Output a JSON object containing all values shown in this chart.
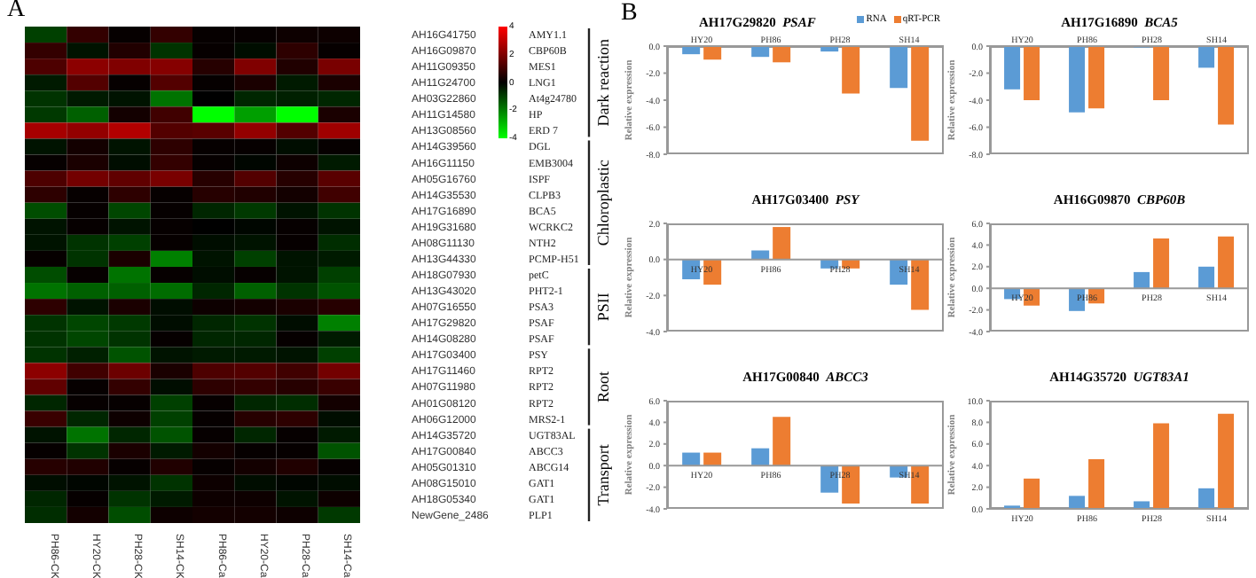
{
  "chart_data": [
    {
      "type": "heatmap",
      "categories": [
        "PH86-CK",
        "HY20-CK",
        "PH28-CK",
        "SH14-CK",
        "PH86-Ca",
        "HY20-Ca",
        "PH28-Ca",
        "SH14-Ca"
      ],
      "y_categories": [
        "AH16G41750",
        "AH16G09870",
        "AH11G09350",
        "AH11G24700",
        "AH03G22860",
        "AH11G14580",
        "AH13G08560",
        "AH14G39560",
        "AH16G11150",
        "AH05G16760",
        "AH14G35530",
        "AH17G16890",
        "AH19G31680",
        "AH08G11130",
        "AH13G44330",
        "AH18G07930",
        "AH13G43020",
        "AH07G16550",
        "AH17G29820",
        "AH14G08280",
        "AH17G03400",
        "AH17G11460",
        "AH07G11980",
        "AH01G08120",
        "AH06G12000",
        "AH14G35720",
        "AH17G00840",
        "AH05G01310",
        "AH08G15010",
        "AH18G05340",
        "NewGene_2486"
      ],
      "y2_categories": [
        "AMY1.1",
        "CBP60B",
        "MES1",
        "LNG1",
        "At4g24780",
        "HP",
        "ERD 7",
        "DGL",
        "EMB3004",
        "ISPF",
        "CLPB3",
        "BCA5",
        "WCRKC2",
        "NTH2",
        "PCMP-H51",
        "petC",
        "PHT2-1",
        "PSA3",
        "PSAF",
        "PSAF",
        "PSY",
        "RPT2",
        "RPT2",
        "RPT2",
        "MRS2-1",
        "UGT83AL",
        "ABCC3",
        "ABCG14",
        "GAT1",
        "GAT1",
        "PLP1"
      ],
      "cells": [
        [
          -1.0,
          0.8,
          0.1,
          0.8,
          0.1,
          0.1,
          0.2,
          0.2
        ],
        [
          0.8,
          -0.3,
          0.5,
          -0.8,
          0.1,
          -0.2,
          0.7,
          0.1
        ],
        [
          1.2,
          2.2,
          2.0,
          2.1,
          0.6,
          2.0,
          0.5,
          1.9
        ],
        [
          -0.4,
          1.3,
          0.1,
          1.3,
          0.1,
          0.4,
          -0.4,
          0.4
        ],
        [
          -0.8,
          -0.4,
          -0.3,
          -1.8,
          0.0,
          -0.6,
          -0.5,
          -0.6
        ],
        [
          -0.9,
          -1.5,
          0.3,
          1.0,
          -4.0,
          -2.5,
          -4.0,
          0.4
        ],
        [
          2.6,
          2.3,
          2.8,
          1.3,
          1.4,
          2.3,
          1.3,
          2.5
        ],
        [
          -0.3,
          0.3,
          -0.3,
          0.7,
          0.1,
          0.1,
          -0.2,
          0.1
        ],
        [
          0.1,
          0.4,
          -0.2,
          0.8,
          0.1,
          -0.1,
          0.2,
          -0.4
        ],
        [
          1.2,
          1.8,
          1.5,
          1.9,
          0.6,
          1.3,
          0.6,
          1.4
        ],
        [
          0.7,
          0.1,
          0.7,
          0.1,
          0.6,
          0.5,
          0.3,
          1.0
        ],
        [
          -1.2,
          0.1,
          -1.1,
          0.1,
          -0.6,
          -0.9,
          -0.3,
          -0.8
        ],
        [
          -0.3,
          0.1,
          -0.3,
          0.1,
          0.0,
          -0.1,
          0.1,
          -0.3
        ],
        [
          -0.3,
          -0.8,
          -1.0,
          0.1,
          -0.2,
          -0.3,
          0.1,
          -0.7
        ],
        [
          0.1,
          -0.8,
          0.4,
          -2.0,
          -0.3,
          -1.0,
          -0.3,
          -0.4
        ],
        [
          -1.2,
          0.1,
          -1.8,
          0.1,
          -0.2,
          0.1,
          -0.3,
          -1.0
        ],
        [
          -1.8,
          -1.5,
          -1.5,
          -1.7,
          -0.6,
          -1.5,
          -0.8,
          -1.3
        ],
        [
          0.7,
          -0.3,
          0.4,
          -0.2,
          0.2,
          0.3,
          0.4,
          0.6
        ],
        [
          -0.8,
          -1.1,
          -0.9,
          -0.2,
          -0.6,
          -0.8,
          -0.2,
          -2.0
        ],
        [
          -0.8,
          -1.1,
          -0.8,
          0.1,
          -0.6,
          -0.6,
          0.1,
          -0.4
        ],
        [
          -0.8,
          -0.5,
          -1.3,
          -0.3,
          -0.4,
          -0.4,
          -0.3,
          -1.0
        ],
        [
          2.2,
          1.0,
          1.7,
          0.4,
          1.2,
          1.3,
          1.0,
          1.8
        ],
        [
          1.5,
          0.1,
          0.8,
          -0.2,
          0.7,
          0.8,
          0.6,
          0.9
        ],
        [
          -0.6,
          0.1,
          0.1,
          -1.0,
          0.1,
          -0.6,
          -0.7,
          0.3
        ],
        [
          0.9,
          -0.6,
          0.2,
          -1.0,
          0.1,
          0.6,
          0.7,
          -0.2
        ],
        [
          -0.3,
          -1.8,
          -0.6,
          -1.3,
          0.1,
          -0.6,
          0.1,
          -0.4
        ],
        [
          0.1,
          -0.8,
          0.4,
          -0.4,
          0.3,
          0.1,
          0.1,
          -1.3
        ],
        [
          0.6,
          0.5,
          0.1,
          0.5,
          0.1,
          0.3,
          0.5,
          0.1
        ],
        [
          -0.2,
          -0.1,
          -0.3,
          -0.8,
          0.2,
          -0.2,
          -0.1,
          -0.2
        ],
        [
          -0.6,
          0.1,
          -0.8,
          -0.4,
          0.2,
          0.2,
          -0.3,
          0.2
        ],
        [
          -0.7,
          0.3,
          -1.2,
          0.2,
          0.3,
          0.3,
          0.2,
          -0.9
        ]
      ],
      "clim": [
        -4,
        4
      ],
      "cticks": [
        -4,
        -2,
        0,
        2,
        4
      ],
      "annotations": [
        "A",
        "Dark reaction",
        "Chloroplastic",
        "PSII",
        "Root",
        "Transport"
      ]
    },
    {
      "type": "bar",
      "title": "AH17G29820 PSAF",
      "ylabel": "Relative expression",
      "categories": [
        "HY20",
        "PH86",
        "PH28",
        "SH14"
      ],
      "series": [
        {
          "name": "RNA",
          "color": "#5b9bd5",
          "values": [
            -0.6,
            -0.8,
            -0.4,
            -3.1
          ]
        },
        {
          "name": "qRT-PCR",
          "color": "#ed7d31",
          "values": [
            -1.0,
            -1.2,
            -3.5,
            -7.0
          ]
        }
      ],
      "ylim": [
        -8,
        0
      ],
      "yticks": [
        {
          "value": -8,
          "label": "-8.0"
        },
        {
          "value": -6,
          "label": "-6.0"
        },
        {
          "value": -4,
          "label": "-4.0"
        },
        {
          "value": -2,
          "label": "-2.0"
        },
        {
          "value": 0,
          "label": "0.0"
        }
      ],
      "legend": "top right",
      "annotations": [
        "B"
      ]
    },
    {
      "type": "bar",
      "title": "AH17G16890 BCA5",
      "ylabel": "Relative expression",
      "categories": [
        "HY20",
        "PH86",
        "PH28",
        "SH14"
      ],
      "series": [
        {
          "color": "#5b9bd5",
          "values": [
            -3.2,
            -4.9,
            -0.1,
            -1.6
          ]
        },
        {
          "color": "#ed7d31",
          "values": [
            -4.0,
            -4.6,
            -4.0,
            -5.8
          ]
        }
      ],
      "ylim": [
        -8,
        0
      ],
      "yticks": [
        {
          "value": -8,
          "label": "-8.0"
        },
        {
          "value": -6,
          "label": "-6.0"
        },
        {
          "value": -4,
          "label": "-4.0"
        },
        {
          "value": -2,
          "label": "-2.0"
        },
        {
          "value": 0,
          "label": "0.0"
        }
      ]
    },
    {
      "type": "bar",
      "title": "AH17G03400 PSY",
      "ylabel": "Relative expression",
      "categories": [
        "HY20",
        "PH86",
        "PH28",
        "SH14"
      ],
      "series": [
        {
          "color": "#5b9bd5",
          "values": [
            -1.1,
            0.5,
            -0.5,
            -1.4
          ]
        },
        {
          "color": "#ed7d31",
          "values": [
            -1.4,
            1.8,
            -0.5,
            -2.8
          ]
        }
      ],
      "ylim": [
        -4,
        2
      ],
      "yticks": [
        {
          "value": -4,
          "label": "-4.0"
        },
        {
          "value": -2,
          "label": "-2.0"
        },
        {
          "value": 0,
          "label": "0.0"
        },
        {
          "value": 2,
          "label": "2.0"
        }
      ]
    },
    {
      "type": "bar",
      "title": "AH16G09870 CBP60B",
      "ylabel": "Relative expression",
      "categories": [
        "HY20",
        "PH86",
        "PH28",
        "SH14"
      ],
      "series": [
        {
          "color": "#5b9bd5",
          "values": [
            -1.0,
            -2.1,
            1.5,
            2.0
          ]
        },
        {
          "color": "#ed7d31",
          "values": [
            -1.6,
            -1.4,
            4.6,
            4.8
          ]
        }
      ],
      "ylim": [
        -4,
        6
      ],
      "yticks": [
        {
          "value": -4,
          "label": "-4.0"
        },
        {
          "value": -2,
          "label": "-2.0"
        },
        {
          "value": 0,
          "label": "0.0"
        },
        {
          "value": 2,
          "label": "2.0"
        },
        {
          "value": 4,
          "label": "4.0"
        },
        {
          "value": 6,
          "label": "6.0"
        }
      ]
    },
    {
      "type": "bar",
      "title": "AH17G00840 ABCC3",
      "ylabel": "Relative expression",
      "categories": [
        "HY20",
        "PH86",
        "PH28",
        "SH14"
      ],
      "series": [
        {
          "color": "#5b9bd5",
          "values": [
            1.2,
            1.6,
            -2.5,
            -1.1
          ]
        },
        {
          "color": "#ed7d31",
          "values": [
            1.2,
            4.5,
            -3.5,
            -3.5
          ]
        }
      ],
      "ylim": [
        -4,
        6
      ],
      "yticks": [
        {
          "value": -4,
          "label": "-4.0"
        },
        {
          "value": -2,
          "label": "-2.0"
        },
        {
          "value": 0,
          "label": "0.0"
        },
        {
          "value": 2,
          "label": "2.0"
        },
        {
          "value": 4,
          "label": "4.0"
        },
        {
          "value": 6,
          "label": "6.0"
        }
      ]
    },
    {
      "type": "bar",
      "title": "AH14G35720 UGT83A1",
      "ylabel": "Relative expression",
      "categories": [
        "HY20",
        "PH86",
        "PH28",
        "SH14"
      ],
      "series": [
        {
          "color": "#5b9bd5",
          "values": [
            0.3,
            1.2,
            0.7,
            1.9
          ]
        },
        {
          "color": "#ed7d31",
          "values": [
            2.8,
            4.6,
            7.9,
            8.8
          ]
        }
      ],
      "ylim": [
        0,
        10
      ],
      "yticks": [
        {
          "value": 0,
          "label": "0.0"
        },
        {
          "value": 2,
          "label": "2.0"
        },
        {
          "value": 4,
          "label": "4.0"
        },
        {
          "value": 6,
          "label": "6.0"
        },
        {
          "value": 8,
          "label": "8.0"
        },
        {
          "value": 10,
          "label": "10.0"
        }
      ]
    }
  ]
}
